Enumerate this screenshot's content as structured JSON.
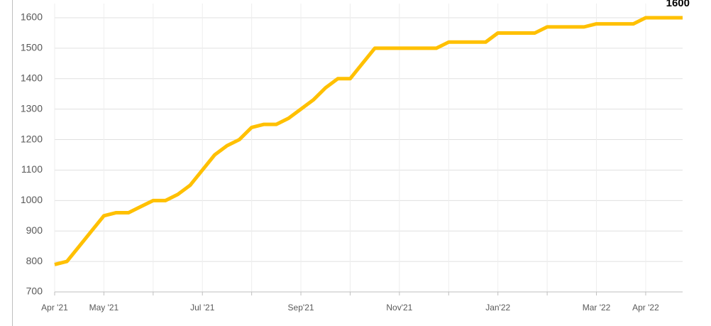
{
  "chart_data": {
    "type": "line",
    "categories": [
      "Apr '21",
      null,
      null,
      null,
      "May '21",
      null,
      null,
      null,
      null,
      null,
      null,
      null,
      "Jul '21",
      null,
      null,
      null,
      null,
      null,
      null,
      null,
      "Sep'21",
      null,
      null,
      null,
      null,
      null,
      null,
      null,
      "Nov'21",
      null,
      null,
      null,
      null,
      null,
      null,
      null,
      "Jan'22",
      null,
      null,
      null,
      null,
      null,
      null,
      null,
      "Mar '22",
      null,
      null,
      null,
      "Apr '22",
      null,
      null,
      null
    ],
    "series": [
      {
        "color": "#FFC000",
        "values": [
          790,
          800,
          850,
          900,
          950,
          960,
          960,
          980,
          1000,
          1000,
          1020,
          1050,
          1100,
          1150,
          1180,
          1200,
          1240,
          1250,
          1250,
          1270,
          1300,
          1330,
          1370,
          1400,
          1400,
          1450,
          1500,
          1500,
          1500,
          1500,
          1500,
          1500,
          1520,
          1520,
          1520,
          1520,
          1550,
          1550,
          1550,
          1550,
          1570,
          1570,
          1570,
          1570,
          1580,
          1580,
          1580,
          1580,
          1600,
          1600,
          1600,
          1600
        ]
      }
    ],
    "ylim": [
      700,
      1600
    ],
    "yticks": [
      700,
      800,
      900,
      1000,
      1100,
      1200,
      1300,
      1400,
      1500,
      1600
    ],
    "grid": true
  }
}
